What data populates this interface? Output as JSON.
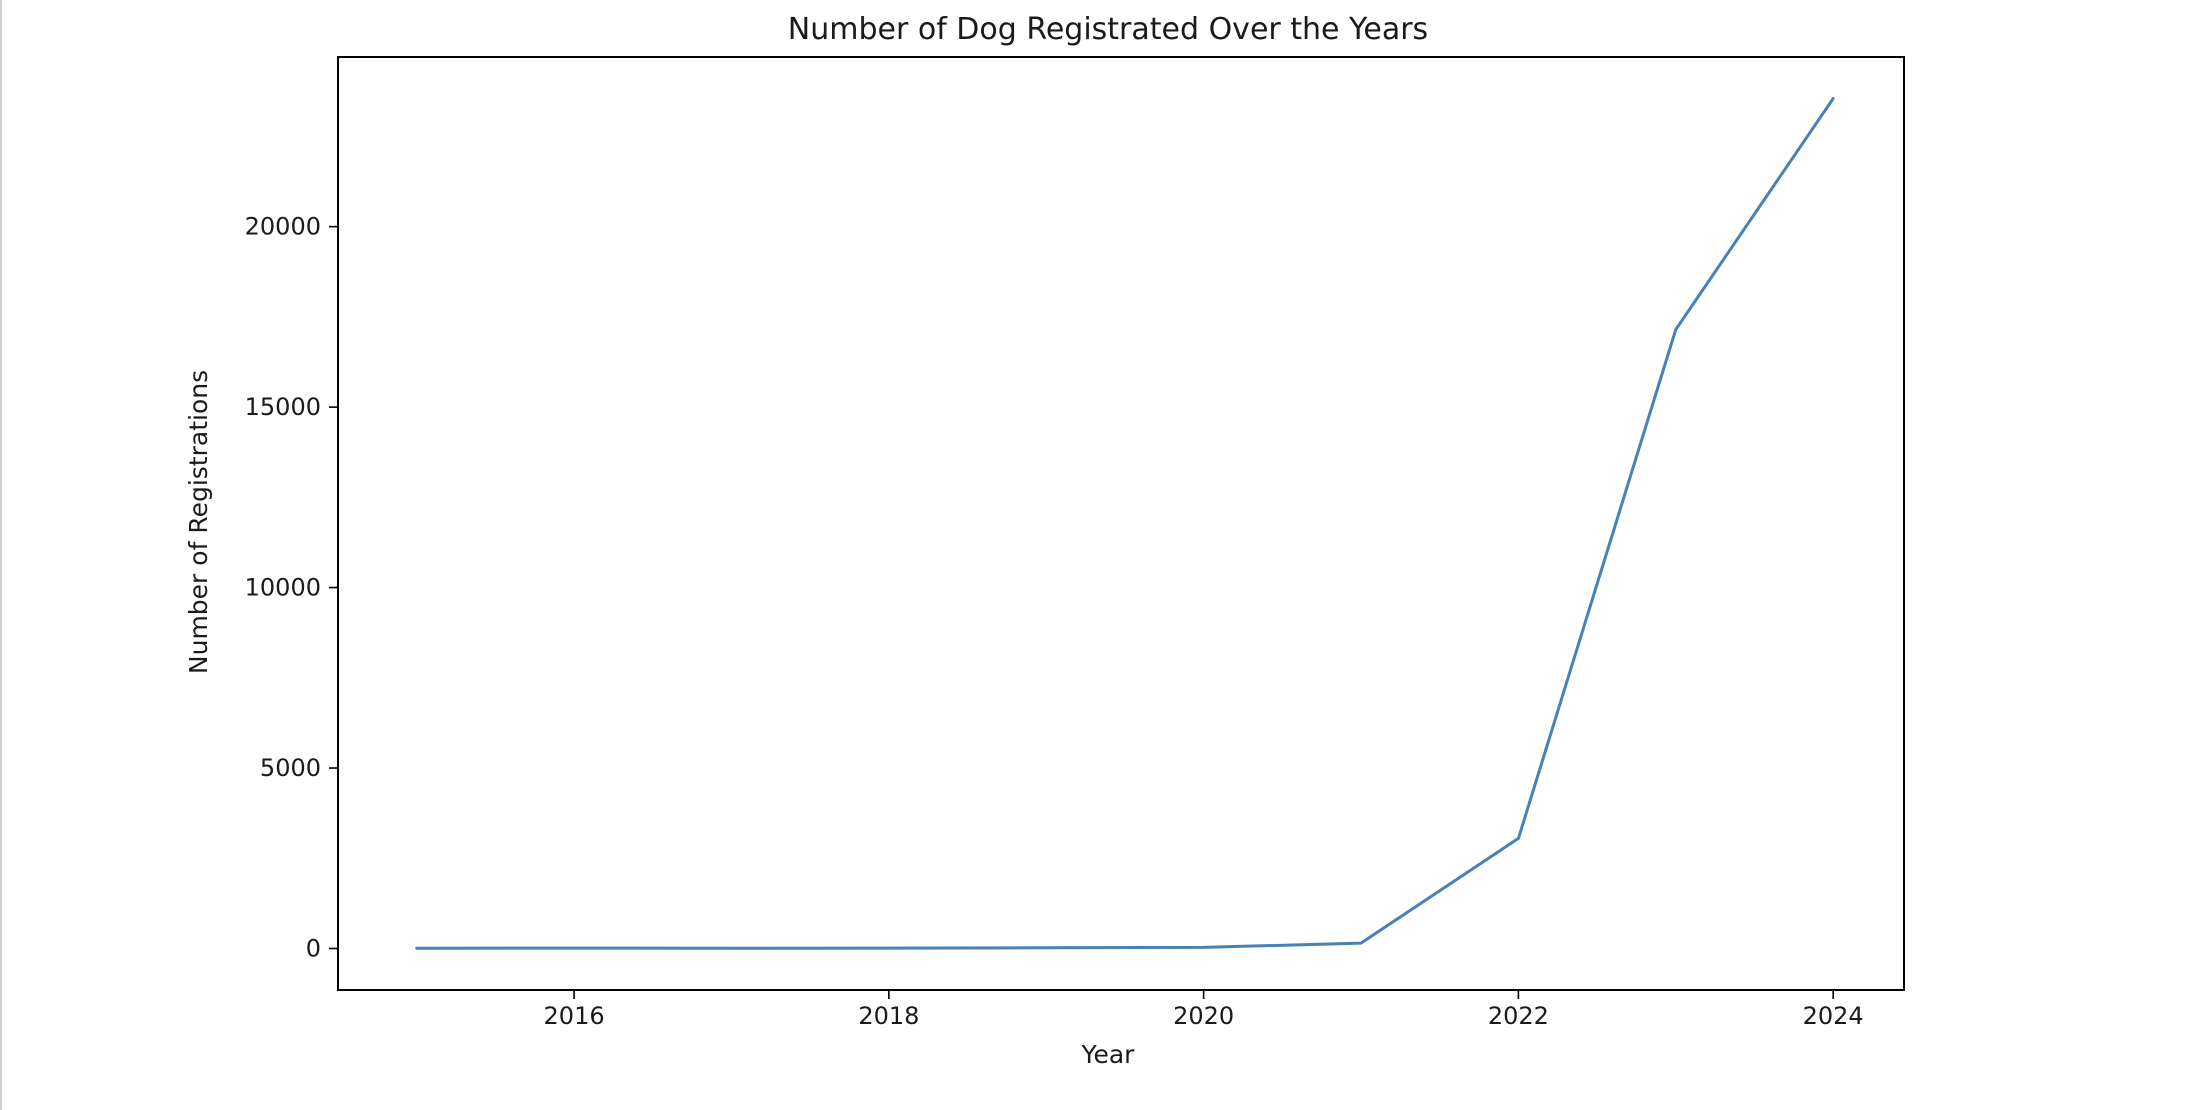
{
  "chart_data": {
    "type": "line",
    "title": "Number of Dog Registrated Over the Years",
    "xlabel": "Year",
    "ylabel": "Number of Registrations",
    "x": [
      2015,
      2016,
      2017,
      2018,
      2019,
      2020,
      2021,
      2022,
      2023,
      2024
    ],
    "series": [
      {
        "values": [
          5,
          10,
          5,
          10,
          20,
          30,
          150,
          3050,
          17150,
          23550
        ],
        "color": "#4682b4"
      }
    ],
    "xlim": [
      2014.5,
      2024.45
    ],
    "ylim": [
      -1150,
      24700
    ],
    "xticks": [
      2016,
      2018,
      2020,
      2022,
      2024
    ],
    "xtick_labels": [
      "2016",
      "2018",
      "2020",
      "2022",
      "2024"
    ],
    "yticks": [
      0,
      5000,
      10000,
      15000,
      20000
    ],
    "ytick_labels": [
      "0",
      "5000",
      "10000",
      "15000",
      "20000"
    ],
    "grid": false,
    "legend": false
  }
}
